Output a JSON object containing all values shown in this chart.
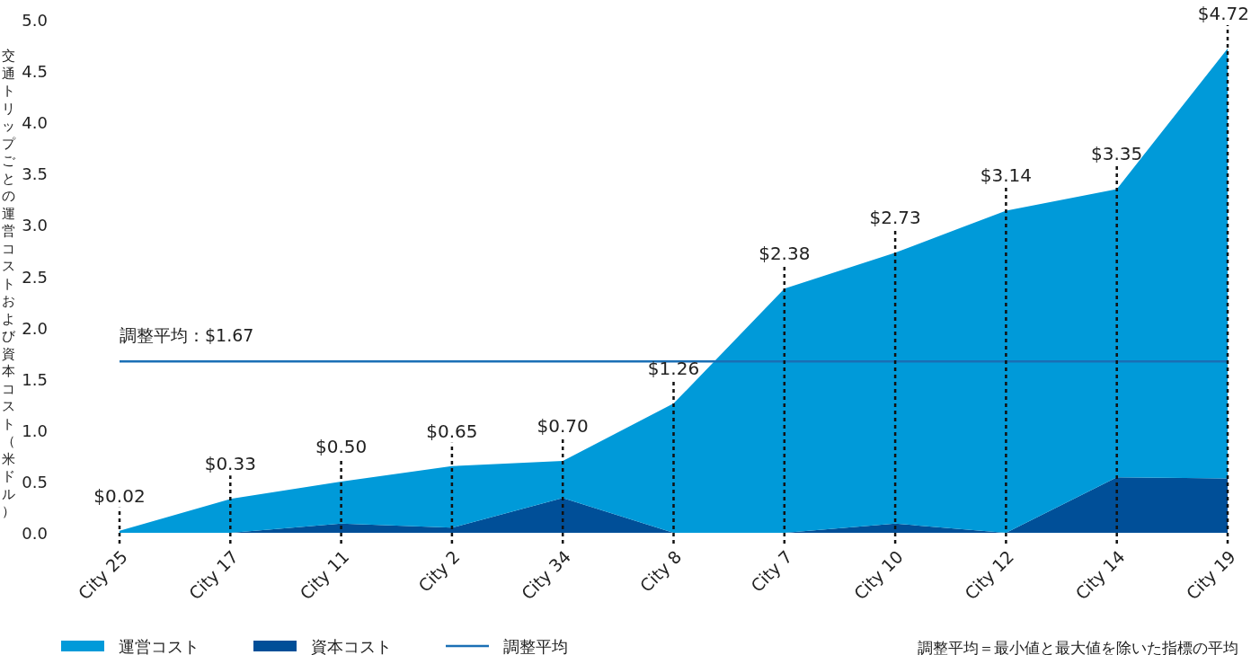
{
  "chart_data": {
    "type": "area",
    "stacked": true,
    "ylabel": "交通トリップごとの運営コストおよび資本コスト（米ドル）",
    "categories": [
      "City 25",
      "City 17",
      "City 11",
      "City 2",
      "City 34",
      "City 8",
      "City 7",
      "City 10",
      "City 12",
      "City 14",
      "City 19"
    ],
    "series": [
      {
        "name": "資本コスト",
        "color": "#004f98",
        "values": [
          0,
          0,
          0.09,
          0.05,
          0.34,
          0,
          0,
          0.09,
          0,
          0.54,
          0.53
        ]
      },
      {
        "name": "運営コスト",
        "color": "#009ad9",
        "values": [
          0.02,
          0.33,
          0.41,
          0.6,
          0.36,
          1.26,
          2.38,
          2.64,
          3.14,
          2.81,
          4.19
        ]
      },
      {
        "name": "調整平均",
        "type": "line",
        "color": "#1a6fb5",
        "values": [
          1.67,
          1.67,
          1.67,
          1.67,
          1.67,
          1.67,
          1.67,
          1.67,
          1.67,
          1.67,
          1.67
        ]
      }
    ],
    "totals": [
      "$0.02",
      "$0.33",
      "$0.50",
      "$0.65",
      "$0.70",
      "$1.26",
      "$2.38",
      "$2.73",
      "$3.14",
      "$3.35",
      "$4.72"
    ],
    "ylim": [
      0,
      5
    ],
    "yticks": [
      {
        "value": 0,
        "label": "0.0"
      },
      {
        "value": 0.5,
        "label": "0.5"
      },
      {
        "value": 1,
        "label": "1.0"
      },
      {
        "value": 1.5,
        "label": "1.5"
      },
      {
        "value": 2,
        "label": "2.0"
      },
      {
        "value": 2.5,
        "label": "2.5"
      },
      {
        "value": 3,
        "label": "3.0"
      },
      {
        "value": 3.5,
        "label": "3.5"
      },
      {
        "value": 4,
        "label": "4.0"
      },
      {
        "value": 4.5,
        "label": "4.5"
      },
      {
        "value": 5,
        "label": "5.0"
      }
    ],
    "legend": "bottom",
    "annotations": [
      {
        "text": "調整平均：$1.67",
        "x": "City 25",
        "y": 1.67
      },
      "調整平均＝最小値と最大値を除いた指標の平均"
    ]
  }
}
